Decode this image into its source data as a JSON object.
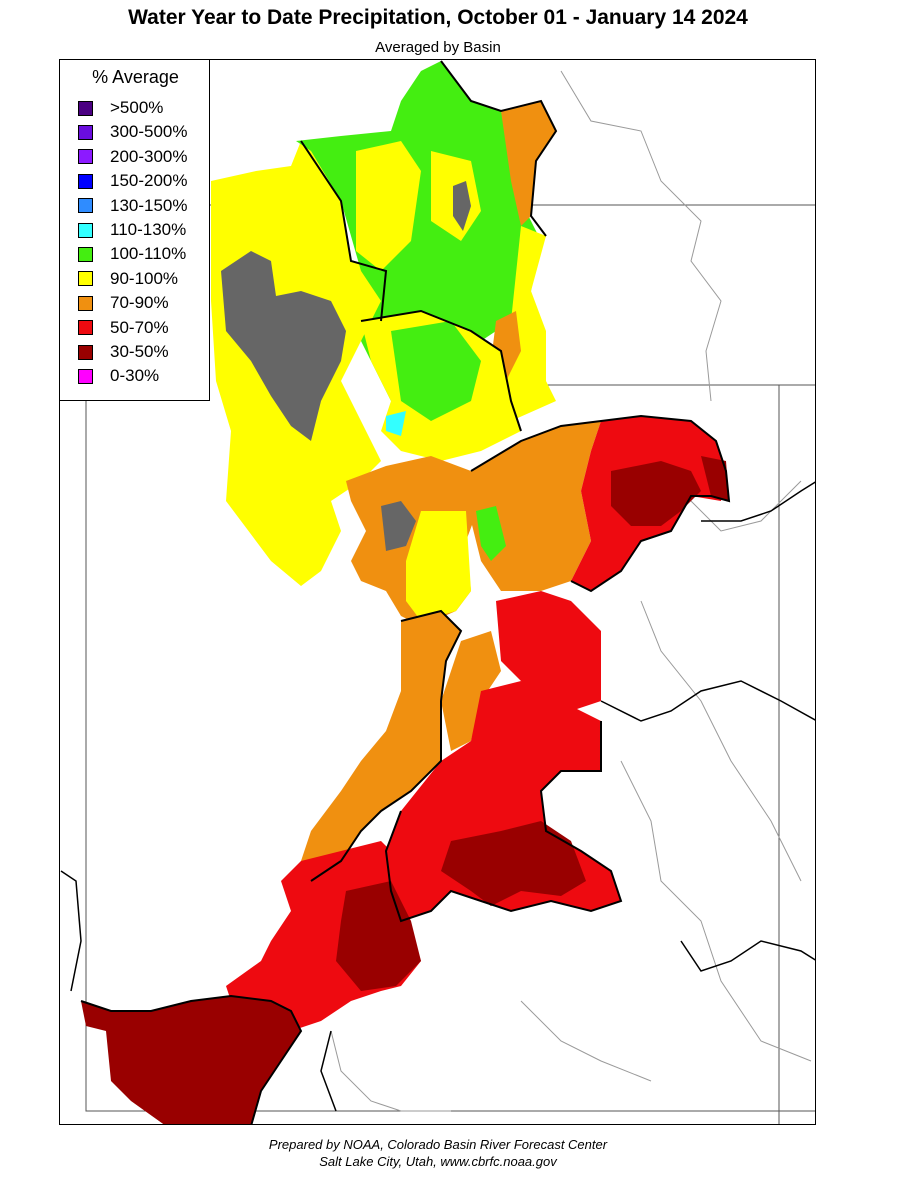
{
  "title": "Water Year to Date Precipitation, October 01  - January 14 2024",
  "subtitle": "Averaged by Basin",
  "legend": {
    "title": "% Average",
    "items": [
      {
        "label": ">500%",
        "color": "#4b0082"
      },
      {
        "label": "300-500%",
        "color": "#6a0dde"
      },
      {
        "label": "200-300%",
        "color": "#8c1aff"
      },
      {
        "label": "150-200%",
        "color": "#0000ff"
      },
      {
        "label": "130-150%",
        "color": "#2f8cff"
      },
      {
        "label": "110-130%",
        "color": "#33ffff"
      },
      {
        "label": "100-110%",
        "color": "#44ee11"
      },
      {
        "label": "90-100%",
        "color": "#ffff00"
      },
      {
        "label": "70-90%",
        "color": "#f09010"
      },
      {
        "label": "50-70%",
        "color": "#ee0a10"
      },
      {
        "label": "30-50%",
        "color": "#990000"
      },
      {
        "label": "0-30%",
        "color": "#ff00ff"
      }
    ]
  },
  "credit": {
    "line1": "Prepared by NOAA, Colorado Basin River Forecast Center",
    "line2": "Salt Lake City, Utah, www.cbrfc.noaa.gov"
  },
  "colors": {
    "lake": "#666666",
    "state_border": "#555555",
    "river": "#9a9a9a",
    "basin_outline": "#000000"
  }
}
